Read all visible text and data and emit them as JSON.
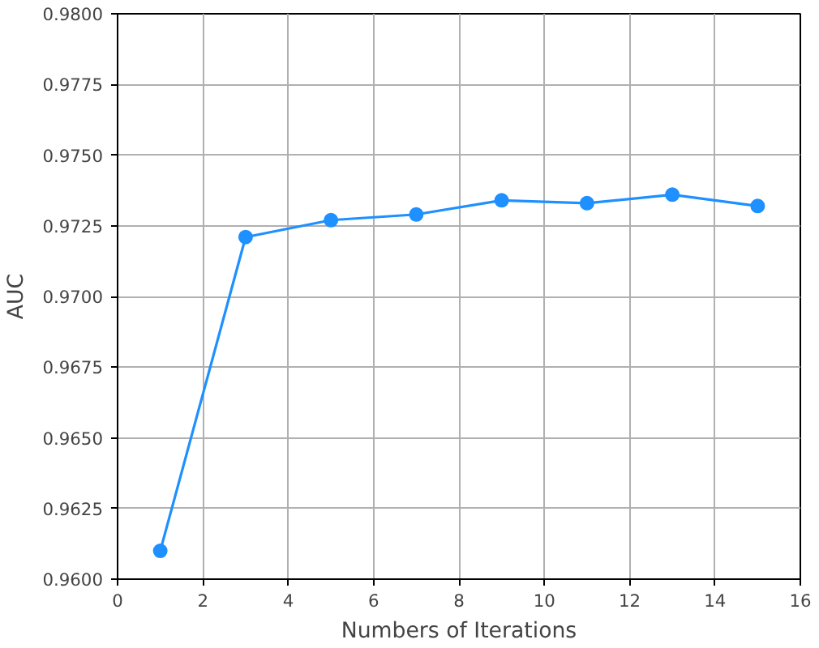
{
  "chart_data": {
    "type": "line",
    "xlabel": "Numbers of Iterations",
    "ylabel": "AUC",
    "x": [
      1,
      3,
      5,
      7,
      9,
      11,
      13,
      15
    ],
    "series": [
      {
        "color": "#1e90ff",
        "values": [
          0.961,
          0.9721,
          0.9727,
          0.9729,
          0.9734,
          0.9733,
          0.9736,
          0.9732
        ]
      }
    ],
    "xlim": [
      0,
      16
    ],
    "xticks": [
      0,
      2,
      4,
      6,
      8,
      10,
      12,
      14,
      16
    ],
    "ylim": [
      0.96,
      0.98
    ],
    "yticks": [
      {
        "value": 0.96,
        "label": "0.9600"
      },
      {
        "value": 0.9625,
        "label": "0.9625"
      },
      {
        "value": 0.965,
        "label": "0.9650"
      },
      {
        "value": 0.9675,
        "label": "0.9675"
      },
      {
        "value": 0.97,
        "label": "0.9700"
      },
      {
        "value": 0.9725,
        "label": "0.9725"
      },
      {
        "value": 0.975,
        "label": "0.9750"
      },
      {
        "value": 0.9775,
        "label": "0.9775"
      },
      {
        "value": 0.98,
        "label": "0.9800"
      }
    ],
    "grid": true,
    "marker": "circle",
    "line_style": "solid"
  }
}
